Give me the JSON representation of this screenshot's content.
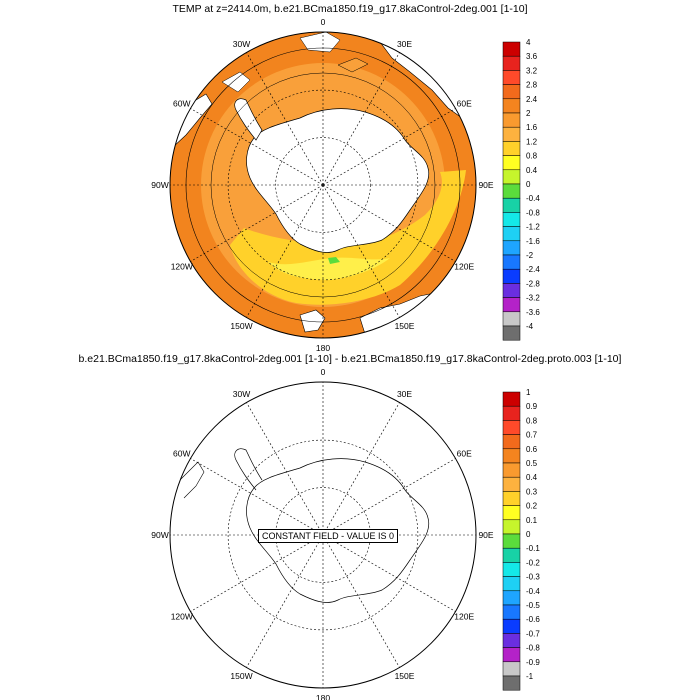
{
  "panels": [
    {
      "title": "TEMP at z=2414.0m, b.e21.BCma1850.f19_g17.8kaControl-2deg.001 [1-10]",
      "lon_labels": [
        "0",
        "30E",
        "60E",
        "90E",
        "120E",
        "150E",
        "180",
        "150W",
        "120W",
        "90W",
        "60W",
        "30W"
      ],
      "colorbar": {
        "labels": [
          "4",
          "3.6",
          "3.2",
          "2.8",
          "2.4",
          "2",
          "1.6",
          "1.2",
          "0.8",
          "0.4",
          "0",
          "-0.4",
          "-0.8",
          "-1.2",
          "-1.6",
          "-2",
          "-2.4",
          "-2.8",
          "-3.2",
          "-3.6",
          "-4"
        ],
        "colors": [
          "#cc0000",
          "#e8231e",
          "#ff4a2a",
          "#f26a1c",
          "#f4841f",
          "#f99a2f",
          "#fdb23f",
          "#ffd12a",
          "#ffff22",
          "#c6f52c",
          "#5bdc3c",
          "#18d2a6",
          "#14e8e8",
          "#1ed0f4",
          "#1ea5ff",
          "#1877ff",
          "#0a3cff",
          "#6a2ee0",
          "#b422c8",
          "#c8c8c8",
          "#6e6e6e"
        ]
      },
      "field_colors": {
        "ocean_far": "#f2841e",
        "ocean_mid": "#f9a03a",
        "ocean_near": "#fdb23f",
        "warm_band": "#ffd12a",
        "cool_band": "#ffef4a"
      }
    },
    {
      "title": "b.e21.BCma1850.f19_g17.8kaControl-2deg.001 [1-10] - b.e21.BCma1850.f19_g17.8kaControl-2deg.proto.003 [1-10]",
      "lon_labels": [
        "0",
        "30E",
        "60E",
        "90E",
        "120E",
        "150E",
        "180",
        "150W",
        "120W",
        "90W",
        "60W",
        "30W"
      ],
      "note": "CONSTANT FIELD - VALUE IS 0",
      "colorbar": {
        "labels": [
          "1",
          "0.9",
          "0.8",
          "0.7",
          "0.6",
          "0.5",
          "0.4",
          "0.3",
          "0.2",
          "0.1",
          "0",
          "-0.1",
          "-0.2",
          "-0.3",
          "-0.4",
          "-0.5",
          "-0.6",
          "-0.7",
          "-0.8",
          "-0.9",
          "-1"
        ],
        "colors": [
          "#cc0000",
          "#e8231e",
          "#ff4a2a",
          "#f26a1c",
          "#f4841f",
          "#f99a2f",
          "#fdb23f",
          "#ffd12a",
          "#ffff22",
          "#c6f52c",
          "#5bdc3c",
          "#18d2a6",
          "#14e8e8",
          "#1ed0f4",
          "#1ea5ff",
          "#1877ff",
          "#0a3cff",
          "#6a2ee0",
          "#b422c8",
          "#c8c8c8",
          "#6e6e6e"
        ]
      }
    }
  ]
}
